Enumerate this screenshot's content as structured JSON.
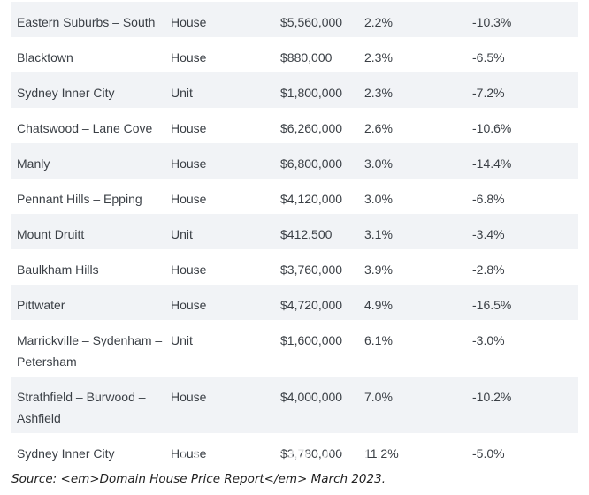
{
  "table": {
    "rows": [
      {
        "region": "Eastern Suburbs – South",
        "type": "House",
        "price": "$5,560,000",
        "yield": "2.2%",
        "change": "-10.3%"
      },
      {
        "region": "Blacktown",
        "type": "House",
        "price": "$880,000",
        "yield": "2.3%",
        "change": "-6.5%"
      },
      {
        "region": "Sydney Inner City",
        "type": "Unit",
        "price": "$1,800,000",
        "yield": "2.3%",
        "change": "-7.2%"
      },
      {
        "region": "Chatswood – Lane Cove",
        "type": "House",
        "price": "$6,260,000",
        "yield": "2.6%",
        "change": "-10.6%"
      },
      {
        "region": "Manly",
        "type": "House",
        "price": "$6,800,000",
        "yield": "3.0%",
        "change": "-14.4%"
      },
      {
        "region": "Pennant Hills – Epping",
        "type": "House",
        "price": "$4,120,000",
        "yield": "3.0%",
        "change": "-6.8%"
      },
      {
        "region": "Mount Druitt",
        "type": "Unit",
        "price": "$412,500",
        "yield": "3.1%",
        "change": "-3.4%"
      },
      {
        "region": "Baulkham Hills",
        "type": "House",
        "price": "$3,760,000",
        "yield": "3.9%",
        "change": "-2.8%"
      },
      {
        "region": "Pittwater",
        "type": "House",
        "price": "$4,720,000",
        "yield": "4.9%",
        "change": "-16.5%"
      },
      {
        "region": "Marrickville – Sydenham – Petersham",
        "type": "Unit",
        "price": "$1,600,000",
        "yield": "6.1%",
        "change": "-3.0%"
      },
      {
        "region": "Strathfield – Burwood – Ashfield",
        "type": "House",
        "price": "$4,000,000",
        "yield": "7.0%",
        "change": "-10.2%"
      },
      {
        "region": "Sydney Inner City",
        "type": "House",
        "price": "$3,780,000",
        "yield": "11.2%",
        "change": "-5.0%"
      }
    ]
  },
  "source": "Source: <em>Domain House Price Report</em> March 2023.",
  "watermark": "Chinese2au",
  "colors": {
    "row_alt_bg": "#f1f3f6",
    "text": "#3a3f45"
  }
}
